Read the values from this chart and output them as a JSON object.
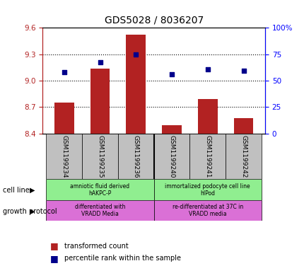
{
  "title": "GDS5028 / 8036207",
  "samples": [
    "GSM1199234",
    "GSM1199235",
    "GSM1199236",
    "GSM1199240",
    "GSM1199241",
    "GSM1199242"
  ],
  "bar_values": [
    8.75,
    9.14,
    9.52,
    8.49,
    8.79,
    8.57
  ],
  "scatter_values": [
    9.1,
    9.21,
    9.3,
    9.07,
    9.13,
    9.11
  ],
  "ylim_left": [
    8.4,
    9.6
  ],
  "ylim_right": [
    0,
    100
  ],
  "yticks_left": [
    8.4,
    8.7,
    9.0,
    9.3,
    9.6
  ],
  "yticks_right": [
    0,
    25,
    50,
    75,
    100
  ],
  "hlines": [
    8.7,
    9.0,
    9.3
  ],
  "bar_color": "#B22222",
  "scatter_color": "#00008B",
  "bar_bottom": 8.4,
  "cell_line_labels": [
    "amniotic fluid derived\nhAKPC-P",
    "immortalized podocyte cell line\nhIPod"
  ],
  "growth_protocol_labels": [
    "differentiated with\nVRADD Media",
    "re-differentiated at 37C in\nVRADD media"
  ],
  "cell_line_color": "#90EE90",
  "growth_protocol_color": "#DA70D6",
  "legend_transformed": "transformed count",
  "legend_percentile": "percentile rank within the sample",
  "left_label_color": "#B22222",
  "right_label_color": "#0000FF",
  "bar_width": 0.55,
  "fig_width": 4.31,
  "fig_height": 3.93,
  "dpi": 100
}
